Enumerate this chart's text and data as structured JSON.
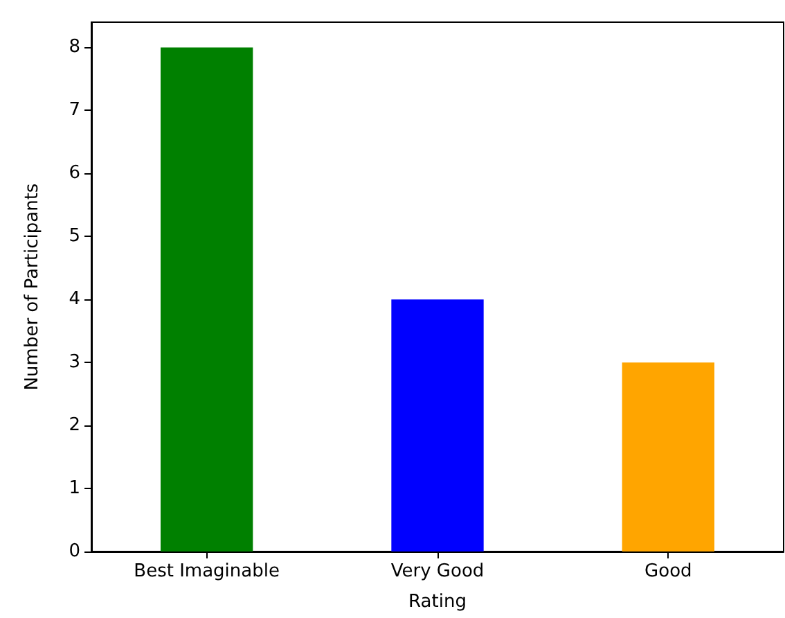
{
  "chart_data": {
    "type": "bar",
    "xlabel": "Rating",
    "ylabel": "Number of Participants",
    "categories": [
      "Best Imaginable",
      "Very Good",
      "Good"
    ],
    "values": [
      8,
      4,
      3
    ],
    "colors": [
      "#008000",
      "#0000ff",
      "#ffa500"
    ],
    "ylim": [
      0,
      8.4
    ],
    "yticks": [
      0,
      1,
      2,
      3,
      4,
      5,
      6,
      7,
      8
    ],
    "grid": false
  }
}
